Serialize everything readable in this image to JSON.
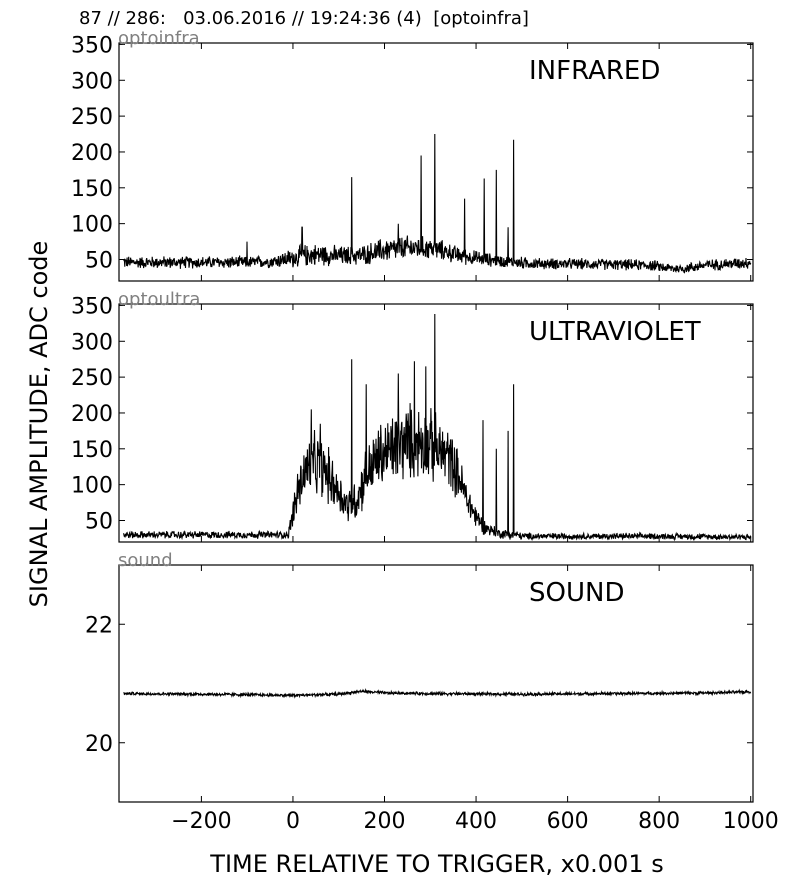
{
  "header": {
    "title": "87 // 286:   03.06.2016 // 19:24:36 (4)  [optoinfra]"
  },
  "figure": {
    "ylabel": "SIGNAL AMPLITUDE,  ADC code",
    "xlabel": "TIME RELATIVE TO TRIGGER,   x0.001 s"
  },
  "chart_data": [
    {
      "type": "line",
      "panel_label": "optoinfra",
      "title": "INFRARED",
      "xlim": [
        -380,
        1005
      ],
      "ylim": [
        20,
        352
      ],
      "yticks": [
        50,
        100,
        150,
        200,
        250,
        300,
        350
      ],
      "xticks": [
        -200,
        0,
        200,
        400,
        600,
        800,
        1000
      ],
      "show_xtick_labels": false,
      "series": [
        {
          "x": [
            -370,
            -300,
            -200,
            -100,
            -50,
            0,
            30,
            60,
            100,
            150,
            200,
            250,
            300,
            330,
            360,
            400,
            450,
            500,
            550,
            600,
            700,
            780,
            820,
            850,
            900,
            950,
            1000
          ],
          "baseline": [
            46,
            46,
            46,
            46,
            47,
            52,
            56,
            57,
            55,
            56,
            63,
            66,
            66,
            62,
            56,
            52,
            48,
            45,
            44,
            44,
            43,
            42,
            38,
            37,
            42,
            44,
            46
          ],
          "noise": [
            10,
            10,
            10,
            10,
            10,
            16,
            18,
            18,
            16,
            16,
            20,
            20,
            18,
            16,
            14,
            12,
            10,
            10,
            9,
            9,
            9,
            9,
            8,
            8,
            9,
            9,
            10
          ],
          "spikes": [
            [
              128,
              165
            ],
            [
              280,
              195
            ],
            [
              310,
              225
            ],
            [
              375,
              135
            ],
            [
              418,
              163
            ],
            [
              444,
              175
            ],
            [
              470,
              95
            ],
            [
              482,
              217
            ],
            [
              20,
              95
            ],
            [
              230,
              100
            ],
            [
              -100,
              75
            ]
          ]
        }
      ]
    },
    {
      "type": "line",
      "panel_label": "optoultra",
      "title": "ULTRAVIOLET",
      "xlim": [
        -380,
        1005
      ],
      "ylim": [
        20,
        352
      ],
      "yticks": [
        50,
        100,
        150,
        200,
        250,
        300,
        350
      ],
      "xticks": [
        -200,
        0,
        200,
        400,
        600,
        800,
        1000
      ],
      "show_xtick_labels": false,
      "series": [
        {
          "x": [
            -370,
            -200,
            -10,
            0,
            20,
            40,
            60,
            80,
            100,
            120,
            140,
            160,
            190,
            220,
            250,
            280,
            300,
            320,
            340,
            360,
            380,
            400,
            420,
            450,
            480,
            490,
            500,
            600,
            800,
            1000
          ],
          "baseline": [
            30,
            30,
            30,
            60,
            110,
            130,
            125,
            110,
            90,
            70,
            80,
            115,
            140,
            150,
            160,
            160,
            155,
            145,
            140,
            115,
            80,
            55,
            40,
            32,
            30,
            30,
            28,
            28,
            28,
            27
          ],
          "noise": [
            6,
            6,
            6,
            25,
            45,
            50,
            50,
            45,
            35,
            30,
            35,
            45,
            55,
            60,
            62,
            60,
            58,
            55,
            50,
            40,
            30,
            20,
            12,
            8,
            8,
            6,
            6,
            5,
            5,
            5
          ],
          "spikes": [
            [
              128,
              275
            ],
            [
              160,
              240
            ],
            [
              230,
              255
            ],
            [
              265,
              272
            ],
            [
              290,
              265
            ],
            [
              310,
              338
            ],
            [
              415,
              190
            ],
            [
              444,
              150
            ],
            [
              470,
              175
            ],
            [
              482,
              240
            ],
            [
              40,
              205
            ],
            [
              60,
              185
            ],
            [
              10,
              115
            ]
          ]
        }
      ]
    },
    {
      "type": "line",
      "panel_label": "sound",
      "title": "SOUND",
      "xlim": [
        -380,
        1005
      ],
      "ylim": [
        19,
        23
      ],
      "yticks": [
        20,
        22
      ],
      "xticks": [
        -200,
        0,
        200,
        400,
        600,
        800,
        1000
      ],
      "show_xtick_labels": true,
      "series": [
        {
          "x": [
            -370,
            -200,
            0,
            100,
            150,
            200,
            300,
            500,
            700,
            900,
            1000
          ],
          "baseline": [
            20.83,
            20.82,
            20.8,
            20.82,
            20.87,
            20.84,
            20.83,
            20.82,
            20.83,
            20.84,
            20.86
          ],
          "noise": [
            0.03,
            0.03,
            0.03,
            0.03,
            0.03,
            0.03,
            0.03,
            0.03,
            0.03,
            0.03,
            0.03
          ],
          "spikes": []
        }
      ]
    }
  ]
}
